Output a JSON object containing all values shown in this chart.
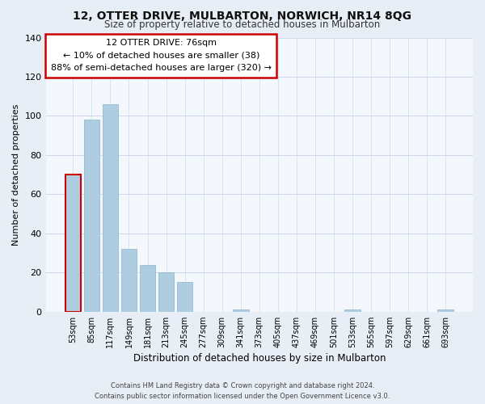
{
  "title": "12, OTTER DRIVE, MULBARTON, NORWICH, NR14 8QG",
  "subtitle": "Size of property relative to detached houses in Mulbarton",
  "xlabel": "Distribution of detached houses by size in Mulbarton",
  "ylabel": "Number of detached properties",
  "categories": [
    "53sqm",
    "85sqm",
    "117sqm",
    "149sqm",
    "181sqm",
    "213sqm",
    "245sqm",
    "277sqm",
    "309sqm",
    "341sqm",
    "373sqm",
    "405sqm",
    "437sqm",
    "469sqm",
    "501sqm",
    "533sqm",
    "565sqm",
    "597sqm",
    "629sqm",
    "661sqm",
    "693sqm"
  ],
  "values": [
    70,
    98,
    106,
    32,
    24,
    20,
    15,
    0,
    0,
    1,
    0,
    0,
    0,
    0,
    0,
    1,
    0,
    0,
    0,
    0,
    1
  ],
  "bar_color": "#aecde0",
  "highlight_edge_color": "#cc0000",
  "normal_edge_color": "#8ab4cb",
  "ylim": [
    0,
    140
  ],
  "yticks": [
    0,
    20,
    40,
    60,
    80,
    100,
    120,
    140
  ],
  "annotation_title": "12 OTTER DRIVE: 76sqm",
  "annotation_line1": "← 10% of detached houses are smaller (38)",
  "annotation_line2": "88% of semi-detached houses are larger (320) →",
  "annotation_box_color": "#ffffff",
  "annotation_box_edgecolor": "#cc0000",
  "footer_line1": "Contains HM Land Registry data © Crown copyright and database right 2024.",
  "footer_line2": "Contains public sector information licensed under the Open Government Licence v3.0.",
  "background_color": "#e8eef5",
  "plot_bg_color": "#f4f8fd",
  "grid_color": "#c5d5e8"
}
